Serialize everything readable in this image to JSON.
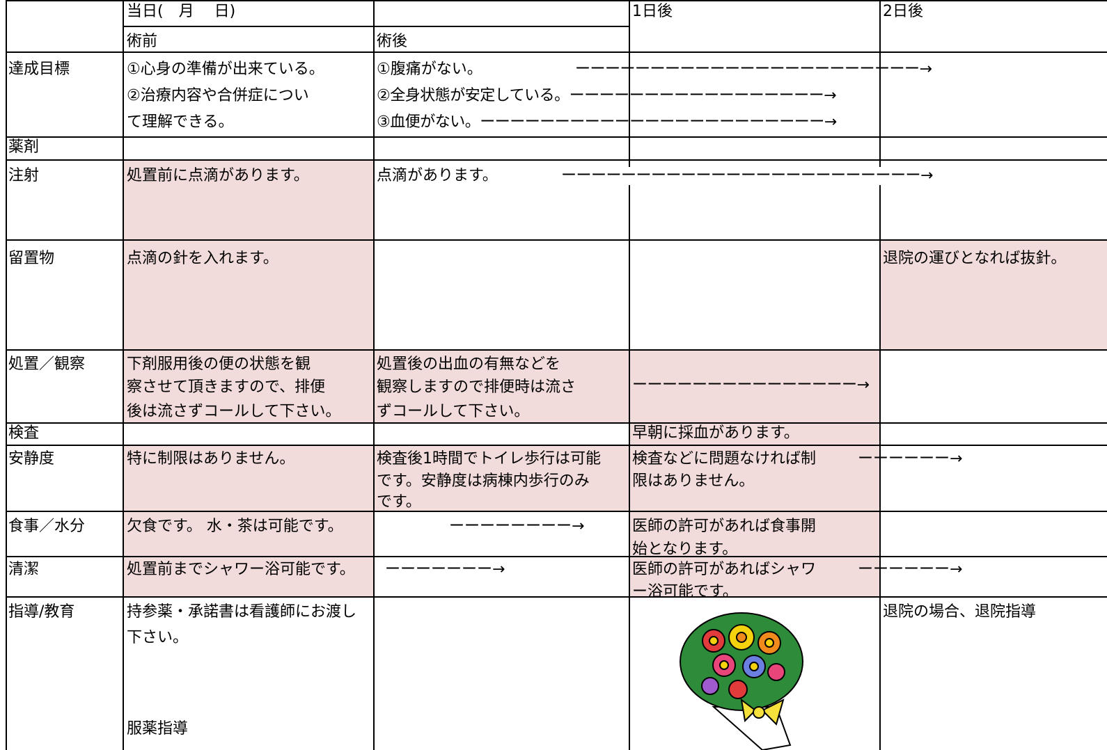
{
  "header": {
    "day0": "当日(　月　 日)",
    "day1": "1日後",
    "day2": "2日後",
    "pre": "術前",
    "post": "術後"
  },
  "rows": [
    {
      "label": "達成目標",
      "pre": [
        "①心身の準備が出来ている。",
        "②治療内容や合併症につい",
        "て理解できる。"
      ],
      "post": [
        "①腹痛がない。",
        "②全身状態が安定している。ーーーーーーーーーーーーーーーーー→",
        "③血便がない。ーーーーーーーーーーーーーーーーーーーーーーー→"
      ],
      "arrow": "ーーーーーーーーーーーーーーーーーーーーーーー→"
    },
    {
      "label": "薬剤"
    },
    {
      "label": "注射",
      "pre": [
        "処置前に点滴があります。"
      ],
      "post": [
        "点滴があります。"
      ],
      "arrow": "ーーーーーーーーーーーーーーーーーーーーーーーー→"
    },
    {
      "label": "留置物",
      "pre": [
        "点滴の針を入れます。"
      ],
      "day2": [
        "退院の運びとなれば抜針。"
      ]
    },
    {
      "label": "処置／観察",
      "pre": [
        "下剤服用後の便の状態を観",
        "察させて頂きますので、排便",
        "後は流さずコールして下さい。"
      ],
      "post": [
        "処置後の出血の有無などを",
        "観察しますので排便時は流さ",
        "ずコールして下さい。"
      ],
      "arrow": "ーーーーーーーーーーーーーーー→"
    },
    {
      "label": "検査",
      "day1": [
        "早朝に採血があります。"
      ]
    },
    {
      "label": "安静度",
      "pre": [
        "特に制限はありません。"
      ],
      "post": [
        "検査後1時間でトイレ歩行は可能",
        "です。安静度は病棟内歩行のみ",
        "です。"
      ],
      "day1": [
        "検査などに問題なければ制",
        "限はありません。"
      ],
      "arrow": "ーーーーーー→"
    },
    {
      "label": "食事／水分",
      "pre": [
        "欠食です。 水・茶は可能です。"
      ],
      "arrow": "ーーーーーーーー→",
      "day1": [
        "医師の許可があれば食事開",
        "始となります。"
      ]
    },
    {
      "label": "清潔",
      "pre": [
        "処置前までシャワー浴可能です。"
      ],
      "arrow": "ーーーーーーー→",
      "day1": [
        "医師の許可があればシャワ",
        "ー浴可能です。"
      ],
      "arrow2": "ーーーーーー→"
    },
    {
      "label": "指導/教育",
      "pre": [
        "持参薬・承諾書は看護師にお渡し",
        "下さい。"
      ],
      "pre_bottom": "服薬指導",
      "day2": [
        "退院の場合、退院指導"
      ]
    }
  ]
}
